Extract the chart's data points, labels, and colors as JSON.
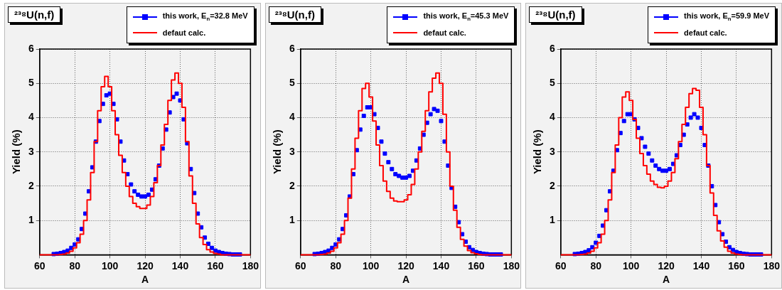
{
  "chart_data": [
    {
      "type": "scatter",
      "title": "²³⁸U(n,f)",
      "xlabel": "A",
      "ylabel": "Yield (%)",
      "xlim": [
        60,
        180
      ],
      "xticks": [
        60,
        80,
        100,
        120,
        140,
        160,
        180
      ],
      "ylim": [
        0,
        6
      ],
      "yticks": [
        1,
        2,
        3,
        4,
        5,
        6
      ],
      "grid": true,
      "legend": "top right",
      "series": [
        {
          "name": "this work, E$_{n}$=32.8 MeV",
          "color": "#0000ff",
          "marker": "square",
          "x": [
            68,
            70,
            72,
            74,
            76,
            78,
            80,
            82,
            84,
            86,
            88,
            90,
            92,
            94,
            96,
            98,
            100,
            102,
            104,
            106,
            108,
            110,
            112,
            114,
            116,
            118,
            120,
            122,
            124,
            126,
            128,
            130,
            132,
            134,
            136,
            138,
            140,
            142,
            144,
            146,
            148,
            150,
            152,
            154,
            156,
            158,
            160,
            162,
            164,
            166,
            168,
            170,
            172,
            174
          ],
          "values": [
            0.02,
            0.03,
            0.05,
            0.08,
            0.12,
            0.2,
            0.3,
            0.45,
            0.75,
            1.2,
            1.85,
            2.55,
            3.3,
            3.9,
            4.4,
            4.65,
            4.7,
            4.4,
            3.95,
            3.3,
            2.75,
            2.35,
            2.05,
            1.85,
            1.75,
            1.7,
            1.7,
            1.75,
            1.9,
            2.2,
            2.6,
            3.1,
            3.65,
            4.15,
            4.6,
            4.7,
            4.5,
            3.95,
            3.25,
            2.5,
            1.8,
            1.2,
            0.8,
            0.5,
            0.32,
            0.2,
            0.12,
            0.08,
            0.05,
            0.03,
            0.02,
            0.01,
            0.01,
            0.01
          ]
        },
        {
          "name": "defaut calc.",
          "color": "#ff0000",
          "type": "step",
          "x": [
            60,
            62,
            64,
            66,
            68,
            70,
            72,
            74,
            76,
            78,
            80,
            82,
            84,
            86,
            88,
            90,
            92,
            94,
            96,
            98,
            100,
            102,
            104,
            106,
            108,
            110,
            112,
            114,
            116,
            118,
            120,
            122,
            124,
            126,
            128,
            130,
            132,
            134,
            136,
            138,
            140,
            142,
            144,
            146,
            148,
            150,
            152,
            154,
            156,
            158,
            160,
            162,
            164,
            166,
            168,
            170,
            172,
            174,
            176,
            178,
            180
          ],
          "values": [
            0,
            0,
            0,
            0,
            0,
            0,
            0.01,
            0.02,
            0.05,
            0.1,
            0.2,
            0.35,
            0.6,
            1.0,
            1.6,
            2.4,
            3.3,
            4.2,
            4.9,
            5.2,
            4.9,
            4.2,
            3.5,
            2.9,
            2.4,
            2.0,
            1.7,
            1.5,
            1.4,
            1.35,
            1.35,
            1.45,
            1.7,
            2.1,
            2.6,
            3.2,
            3.8,
            4.5,
            5.1,
            5.3,
            5.0,
            4.3,
            3.3,
            2.3,
            1.5,
            0.9,
            0.5,
            0.3,
            0.15,
            0.08,
            0.04,
            0.02,
            0,
            0,
            0,
            0,
            0,
            0,
            0,
            0,
            0
          ]
        }
      ]
    },
    {
      "type": "scatter",
      "title": "²³⁸U(n,f)",
      "xlabel": "A",
      "ylabel": "Yield (%)",
      "xlim": [
        60,
        180
      ],
      "xticks": [
        60,
        80,
        100,
        120,
        140,
        160,
        180
      ],
      "ylim": [
        0,
        6
      ],
      "yticks": [
        1,
        2,
        3,
        4,
        5,
        6
      ],
      "grid": true,
      "legend": "top right",
      "series": [
        {
          "name": "this work, E$_{n}$=45.3 MeV",
          "color": "#0000ff",
          "marker": "square",
          "x": [
            68,
            70,
            72,
            74,
            76,
            78,
            80,
            82,
            84,
            86,
            88,
            90,
            92,
            94,
            96,
            98,
            100,
            102,
            104,
            106,
            108,
            110,
            112,
            114,
            116,
            118,
            120,
            122,
            124,
            126,
            128,
            130,
            132,
            134,
            136,
            138,
            140,
            142,
            144,
            146,
            148,
            150,
            152,
            154,
            156,
            158,
            160,
            162,
            164,
            166,
            168,
            170,
            172,
            174
          ],
          "values": [
            0.02,
            0.03,
            0.05,
            0.08,
            0.12,
            0.2,
            0.3,
            0.45,
            0.75,
            1.15,
            1.7,
            2.35,
            3.05,
            3.65,
            4.05,
            4.3,
            4.3,
            4.1,
            3.7,
            3.3,
            2.95,
            2.7,
            2.5,
            2.35,
            2.3,
            2.25,
            2.25,
            2.3,
            2.45,
            2.75,
            3.1,
            3.5,
            3.85,
            4.1,
            4.25,
            4.2,
            3.9,
            3.3,
            2.6,
            1.95,
            1.4,
            0.95,
            0.6,
            0.38,
            0.22,
            0.14,
            0.08,
            0.05,
            0.03,
            0.02,
            0.01,
            0.01,
            0.01,
            0.01
          ]
        },
        {
          "name": "defaut calc.",
          "color": "#ff0000",
          "type": "step",
          "x": [
            60,
            62,
            64,
            66,
            68,
            70,
            72,
            74,
            76,
            78,
            80,
            82,
            84,
            86,
            88,
            90,
            92,
            94,
            96,
            98,
            100,
            102,
            104,
            106,
            108,
            110,
            112,
            114,
            116,
            118,
            120,
            122,
            124,
            126,
            128,
            130,
            132,
            134,
            136,
            138,
            140,
            142,
            144,
            146,
            148,
            150,
            152,
            154,
            156,
            158,
            160,
            162,
            164,
            166,
            168,
            170,
            172,
            174,
            176,
            178,
            180
          ],
          "values": [
            0,
            0,
            0,
            0,
            0,
            0,
            0.01,
            0.02,
            0.05,
            0.1,
            0.2,
            0.35,
            0.6,
            1.0,
            1.65,
            2.5,
            3.4,
            4.2,
            4.85,
            5.0,
            4.6,
            3.9,
            3.2,
            2.6,
            2.15,
            1.85,
            1.65,
            1.57,
            1.55,
            1.55,
            1.6,
            1.75,
            2.05,
            2.5,
            3.0,
            3.6,
            4.2,
            4.75,
            5.15,
            5.3,
            5.0,
            4.1,
            3.0,
            2.0,
            1.3,
            0.8,
            0.45,
            0.25,
            0.12,
            0.06,
            0.03,
            0.01,
            0,
            0,
            0,
            0,
            0,
            0,
            0,
            0,
            0
          ]
        }
      ]
    },
    {
      "type": "scatter",
      "title": "²³⁸U(n,f)",
      "xlabel": "A",
      "ylabel": "Yield (%)",
      "xlim": [
        60,
        180
      ],
      "xticks": [
        60,
        80,
        100,
        120,
        140,
        160,
        180
      ],
      "ylim": [
        0,
        6
      ],
      "yticks": [
        1,
        2,
        3,
        4,
        5,
        6
      ],
      "grid": true,
      "legend": "top right",
      "series": [
        {
          "name": "this work, E$_{n}$=59.9 MeV",
          "color": "#0000ff",
          "marker": "square",
          "x": [
            68,
            70,
            72,
            74,
            76,
            78,
            80,
            82,
            84,
            86,
            88,
            90,
            92,
            94,
            96,
            98,
            100,
            102,
            104,
            106,
            108,
            110,
            112,
            114,
            116,
            118,
            120,
            122,
            124,
            126,
            128,
            130,
            132,
            134,
            136,
            138,
            140,
            142,
            144,
            146,
            148,
            150,
            152,
            154,
            156,
            158,
            160,
            162,
            164,
            166,
            168,
            170,
            172,
            174
          ],
          "values": [
            0.02,
            0.03,
            0.05,
            0.08,
            0.13,
            0.22,
            0.35,
            0.55,
            0.85,
            1.3,
            1.85,
            2.45,
            3.05,
            3.55,
            3.9,
            4.1,
            4.1,
            3.95,
            3.7,
            3.4,
            3.15,
            2.95,
            2.75,
            2.6,
            2.5,
            2.45,
            2.45,
            2.5,
            2.65,
            2.9,
            3.2,
            3.5,
            3.8,
            4.0,
            4.1,
            4.0,
            3.7,
            3.2,
            2.6,
            2.0,
            1.45,
            0.95,
            0.6,
            0.38,
            0.22,
            0.14,
            0.08,
            0.05,
            0.03,
            0.02,
            0.01,
            0.01,
            0.01,
            0.01
          ]
        },
        {
          "name": "defaut calc.",
          "color": "#ff0000",
          "type": "step",
          "x": [
            60,
            62,
            64,
            66,
            68,
            70,
            72,
            74,
            76,
            78,
            80,
            82,
            84,
            86,
            88,
            90,
            92,
            94,
            96,
            98,
            100,
            102,
            104,
            106,
            108,
            110,
            112,
            114,
            116,
            118,
            120,
            122,
            124,
            126,
            128,
            130,
            132,
            134,
            136,
            138,
            140,
            142,
            144,
            146,
            148,
            150,
            152,
            154,
            156,
            158,
            160,
            162,
            164,
            166,
            168,
            170,
            172,
            174,
            176,
            178,
            180
          ],
          "values": [
            0,
            0,
            0,
            0,
            0,
            0,
            0.01,
            0.02,
            0.05,
            0.1,
            0.2,
            0.35,
            0.6,
            1.0,
            1.6,
            2.4,
            3.2,
            4.0,
            4.6,
            4.75,
            4.5,
            3.95,
            3.4,
            2.95,
            2.6,
            2.35,
            2.15,
            2.05,
            1.97,
            1.95,
            2.0,
            2.15,
            2.4,
            2.8,
            3.3,
            3.8,
            4.3,
            4.7,
            4.85,
            4.8,
            4.3,
            3.5,
            2.6,
            1.8,
            1.15,
            0.7,
            0.4,
            0.22,
            0.1,
            0.05,
            0.02,
            0.01,
            0,
            0,
            0,
            0,
            0,
            0,
            0,
            0,
            0
          ]
        }
      ]
    }
  ]
}
